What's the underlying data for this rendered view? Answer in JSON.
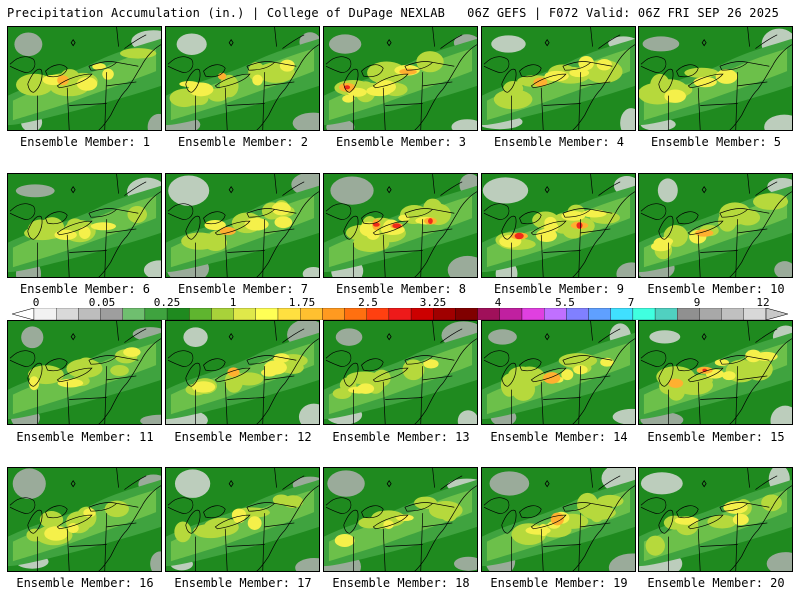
{
  "header": {
    "left": "Precipitation Accumulation (in.) | College of DuPage NEXLAB",
    "right": "06Z GEFS | F072 Valid: 06Z FRI SEP 26 2025"
  },
  "label_prefix": "Ensemble Member: ",
  "members": [
    {
      "label": "Ensemble Member: 1"
    },
    {
      "label": "Ensemble Member: 2"
    },
    {
      "label": "Ensemble Member: 3"
    },
    {
      "label": "Ensemble Member: 4"
    },
    {
      "label": "Ensemble Member: 5"
    },
    {
      "label": "Ensemble Member: 6"
    },
    {
      "label": "Ensemble Member: 7"
    },
    {
      "label": "Ensemble Member: 8"
    },
    {
      "label": "Ensemble Member: 9"
    },
    {
      "label": "Ensemble Member: 10"
    },
    {
      "label": "Ensemble Member: 11"
    },
    {
      "label": "Ensemble Member: 12"
    },
    {
      "label": "Ensemble Member: 13"
    },
    {
      "label": "Ensemble Member: 14"
    },
    {
      "label": "Ensemble Member: 15"
    },
    {
      "label": "Ensemble Member: 16"
    },
    {
      "label": "Ensemble Member: 17"
    },
    {
      "label": "Ensemble Member: 18"
    },
    {
      "label": "Ensemble Member: 19"
    },
    {
      "label": "Ensemble Member: 20"
    }
  ],
  "colorbar": {
    "tick_labels": [
      "0",
      "0.05",
      "0.25",
      "1",
      "1.75",
      "2.5",
      "3.25",
      "4",
      "5.5",
      "7",
      "9",
      "12"
    ],
    "colors": [
      "#f2f2f2",
      "#d9d9d9",
      "#bdbdbd",
      "#9e9e9e",
      "#6fbf6f",
      "#3fa33f",
      "#1f8a1f",
      "#5fb52f",
      "#a8d23a",
      "#dfe84a",
      "#ffff55",
      "#ffe040",
      "#ffc030",
      "#ff9a20",
      "#ff7010",
      "#ff4010",
      "#ee1a1a",
      "#cc0000",
      "#a00000",
      "#800000",
      "#a0105a",
      "#c020a0",
      "#e040e0",
      "#c070ff",
      "#8080ff",
      "#5fa0ff",
      "#40e0ff",
      "#40ffe0",
      "#50d0c0",
      "#909090",
      "#a8a8a8",
      "#c0c0c0",
      "#d8d8d8"
    ]
  },
  "palette": {
    "green_dark": "#1f8a1f",
    "green": "#3fa33f",
    "green_light": "#6cc04a",
    "yellow_green": "#b6d93c",
    "yellow": "#f5f04a",
    "orange": "#ffb030",
    "red": "#ee2a1a",
    "gray": "#b0b0b0",
    "gray_light": "#d8d8d8"
  }
}
